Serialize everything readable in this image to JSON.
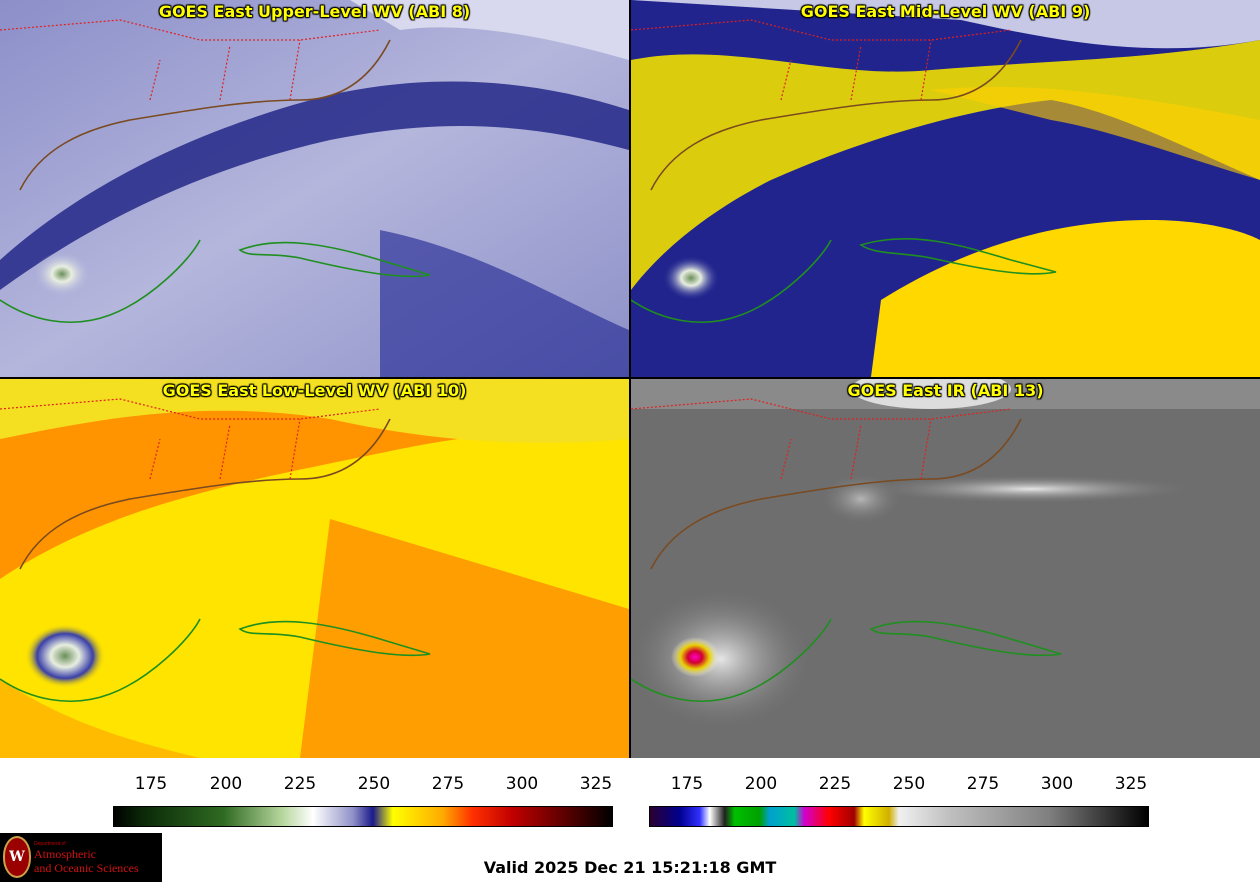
{
  "panels": [
    {
      "title": "GOES East Upper-Level WV (ABI 8)"
    },
    {
      "title": "GOES East Mid-Level WV (ABI 9)"
    },
    {
      "title": "GOES East Low-Level WV (ABI 10)"
    },
    {
      "title": "GOES East IR (ABI 13)"
    }
  ],
  "colorbar_wv": {
    "ticks": [
      "175",
      "200",
      "225",
      "250",
      "275",
      "300",
      "325"
    ],
    "colors": [
      "#000000",
      "#0b2a08",
      "#2f6a22",
      "#b9d8a0",
      "#ffffff",
      "#9090c8",
      "#1a1a8a",
      "#ffff00",
      "#ffaa00",
      "#ff3000",
      "#c00000",
      "#600000",
      "#000000"
    ]
  },
  "colorbar_ir": {
    "ticks": [
      "175",
      "200",
      "225",
      "250",
      "275",
      "300",
      "325"
    ]
  },
  "logo": {
    "seal_letter": "W",
    "department": "Department of",
    "line1": "Atmospheric",
    "line2": "and Oceanic Sciences"
  },
  "valid_time": "Valid 2025 Dec 21 15:21:18 GMT"
}
